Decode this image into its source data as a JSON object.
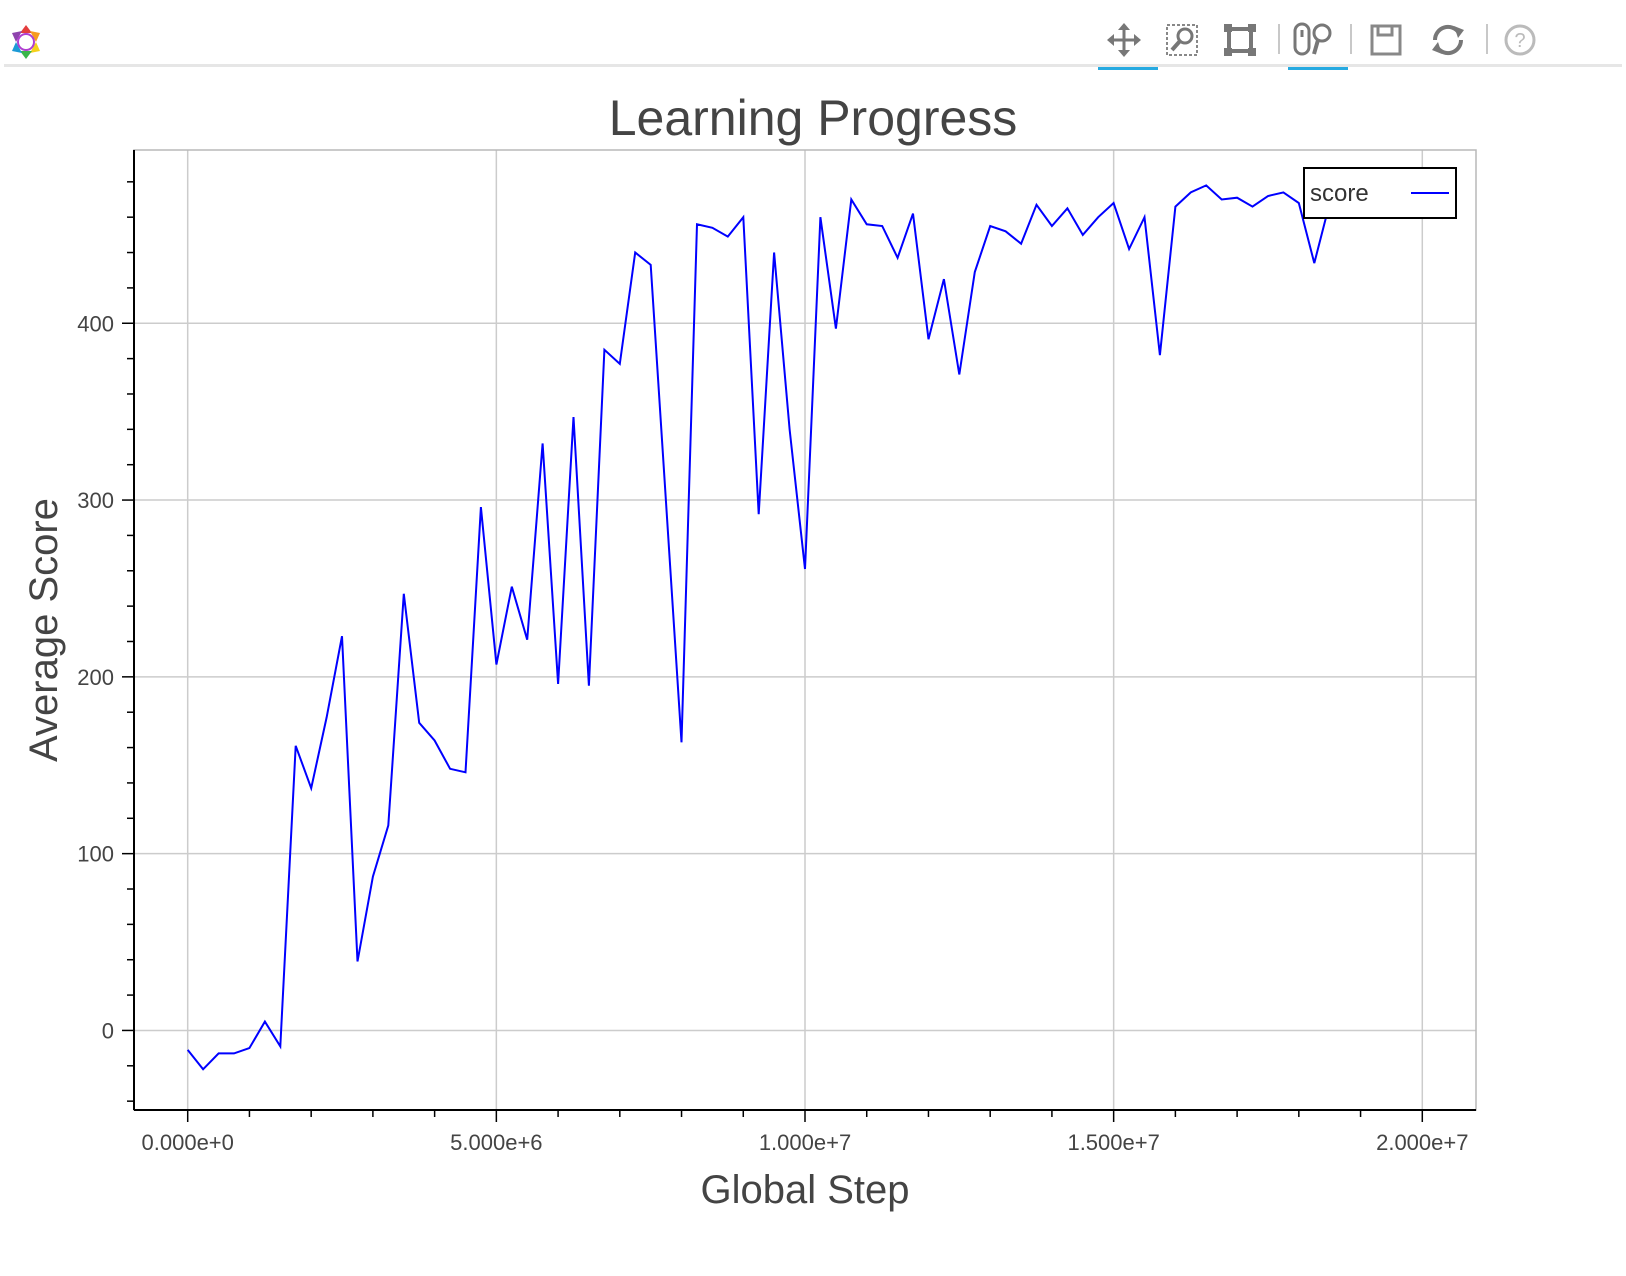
{
  "toolbar": {
    "logo": "bokeh-logo-icon",
    "tools": [
      {
        "name": "pan-tool",
        "icon": "pan-icon",
        "active": true
      },
      {
        "name": "box-zoom-tool",
        "icon": "box-zoom-icon",
        "active": false
      },
      {
        "name": "resize-tool",
        "icon": "resize-icon",
        "active": false
      },
      {
        "name": "wheel-zoom-tool",
        "icon": "wheel-zoom-icon",
        "active": true
      },
      {
        "name": "save-tool",
        "icon": "save-icon",
        "active": false
      },
      {
        "name": "reset-tool",
        "icon": "reset-icon",
        "active": false
      },
      {
        "name": "help-tool",
        "icon": "help-icon",
        "active": false
      }
    ],
    "active_color": "#26aae1"
  },
  "chart_data": {
    "type": "line",
    "title": "Learning Progress",
    "xlabel": "Global Step",
    "ylabel": "Average Score",
    "xlim": [
      -870000,
      20870000
    ],
    "ylim": [
      -45,
      498
    ],
    "x_ticks": [
      0,
      5000000,
      10000000,
      15000000,
      20000000
    ],
    "x_tick_labels": [
      "0.000e+0",
      "5.000e+6",
      "1.000e+7",
      "1.500e+7",
      "2.000e+7"
    ],
    "y_ticks": [
      0,
      100,
      200,
      300,
      400
    ],
    "y_tick_labels": [
      "0",
      "100",
      "200",
      "300",
      "400"
    ],
    "grid": true,
    "legend": "top-right",
    "line_color": "#0000ff",
    "series": [
      {
        "name": "score",
        "x": [
          0,
          250000,
          500000,
          750000,
          1000000,
          1250000,
          1500000,
          1750000,
          2000000,
          2250000,
          2500000,
          2750000,
          3000000,
          3250000,
          3500000,
          3750000,
          4000000,
          4250000,
          4500000,
          4750000,
          5000000,
          5250000,
          5500000,
          5750000,
          6000000,
          6250000,
          6500000,
          6750000,
          7000000,
          7250000,
          7500000,
          7750000,
          8000000,
          8250000,
          8500000,
          8750000,
          9000000,
          9250000,
          9500000,
          9750000,
          10000000,
          10250000,
          10500000,
          10750000,
          11000000,
          11250000,
          11500000,
          11750000,
          12000000,
          12250000,
          12500000,
          12750000,
          13000000,
          13250000,
          13500000,
          13750000,
          14000000,
          14250000,
          14500000,
          14750000,
          15000000,
          15250000,
          15500000,
          15750000,
          16000000,
          16250000,
          16500000,
          16750000,
          17000000,
          17250000,
          17500000,
          17750000,
          18000000,
          18250000,
          18500000
        ],
        "y": [
          -11,
          -22,
          -13,
          -13,
          -10,
          5,
          -9,
          161,
          137,
          177,
          223,
          39,
          87,
          116,
          247,
          174,
          164,
          148,
          146,
          296,
          207,
          251,
          221,
          332,
          196,
          347,
          195,
          385,
          377,
          440,
          433,
          298,
          163,
          456,
          454,
          449,
          460,
          292,
          440,
          340,
          261,
          460,
          397,
          470,
          456,
          455,
          437,
          462,
          391,
          425,
          371,
          429,
          455,
          452,
          445,
          467,
          455,
          465,
          450,
          460,
          468,
          442,
          460,
          382,
          466,
          474,
          478,
          470,
          471,
          466,
          472,
          474,
          468,
          434,
          468
        ]
      }
    ]
  }
}
